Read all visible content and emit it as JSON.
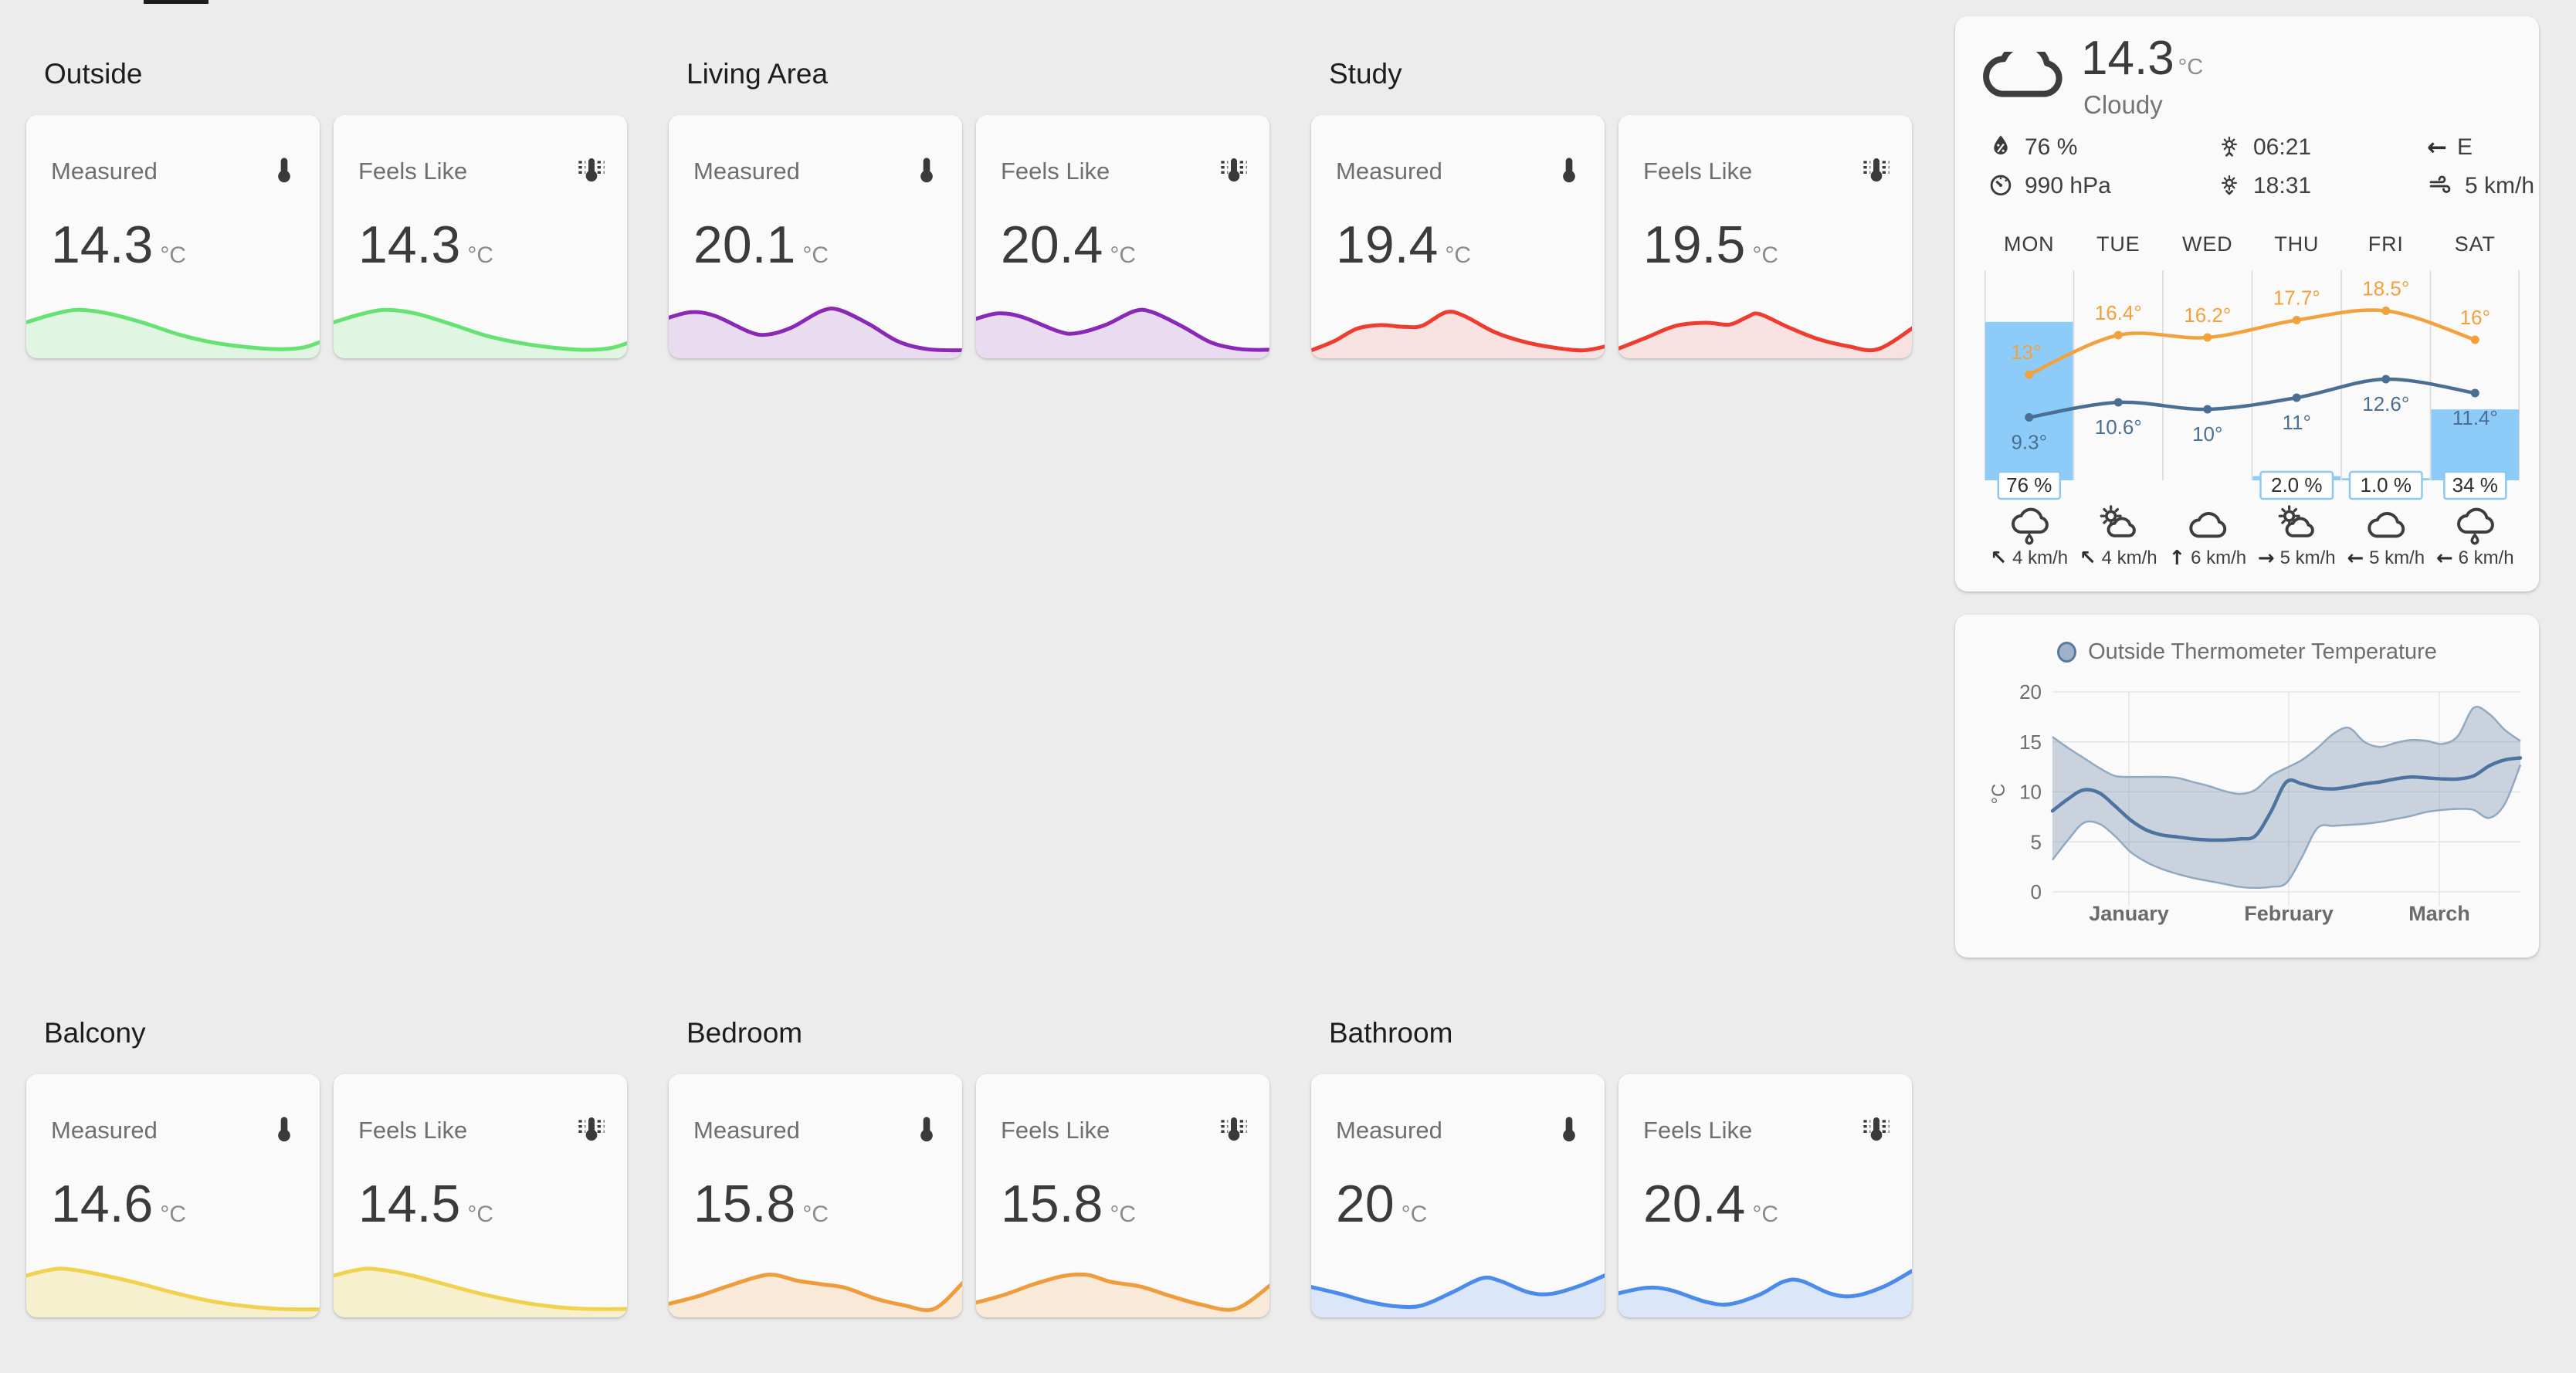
{
  "app": {
    "name": "home-dashboard"
  },
  "sections": [
    {
      "title": "Outside",
      "row": 0,
      "col": 0,
      "line_color": "#66e273",
      "fill_color": "rgba(102,226,115,0.16)",
      "cards": [
        {
          "label": "Measured",
          "icon": "thermometer",
          "value": "14.3",
          "unit": "°C",
          "spark": [
            [
              0,
              0.5
            ],
            [
              0.1,
              0.65
            ],
            [
              0.18,
              0.72
            ],
            [
              0.28,
              0.66
            ],
            [
              0.4,
              0.5
            ],
            [
              0.52,
              0.3
            ],
            [
              0.64,
              0.16
            ],
            [
              0.76,
              0.08
            ],
            [
              0.86,
              0.05
            ],
            [
              0.94,
              0.08
            ],
            [
              1,
              0.18
            ]
          ]
        },
        {
          "label": "Feels Like",
          "icon": "thermometer-lines",
          "value": "14.3",
          "unit": "°C",
          "spark": [
            [
              0,
              0.5
            ],
            [
              0.1,
              0.65
            ],
            [
              0.18,
              0.72
            ],
            [
              0.28,
              0.66
            ],
            [
              0.4,
              0.48
            ],
            [
              0.52,
              0.28
            ],
            [
              0.64,
              0.15
            ],
            [
              0.76,
              0.07
            ],
            [
              0.86,
              0.04
            ],
            [
              0.94,
              0.07
            ],
            [
              1,
              0.16
            ]
          ]
        }
      ]
    },
    {
      "title": "Living Area",
      "row": 0,
      "col": 1,
      "line_color": "#8a28b8",
      "fill_color": "rgba(138,40,184,0.14)",
      "cards": [
        {
          "label": "Measured",
          "icon": "thermometer",
          "value": "20.1",
          "unit": "°C",
          "spark": [
            [
              0,
              0.58
            ],
            [
              0.08,
              0.68
            ],
            [
              0.16,
              0.62
            ],
            [
              0.28,
              0.34
            ],
            [
              0.34,
              0.3
            ],
            [
              0.42,
              0.42
            ],
            [
              0.52,
              0.7
            ],
            [
              0.58,
              0.72
            ],
            [
              0.68,
              0.48
            ],
            [
              0.78,
              0.18
            ],
            [
              0.88,
              0.05
            ],
            [
              1,
              0.03
            ]
          ]
        },
        {
          "label": "Feels Like",
          "icon": "thermometer-lines",
          "value": "20.4",
          "unit": "°C",
          "spark": [
            [
              0,
              0.56
            ],
            [
              0.08,
              0.66
            ],
            [
              0.16,
              0.6
            ],
            [
              0.28,
              0.36
            ],
            [
              0.34,
              0.32
            ],
            [
              0.44,
              0.46
            ],
            [
              0.54,
              0.7
            ],
            [
              0.6,
              0.68
            ],
            [
              0.7,
              0.44
            ],
            [
              0.8,
              0.16
            ],
            [
              0.9,
              0.05
            ],
            [
              1,
              0.04
            ]
          ]
        }
      ]
    },
    {
      "title": "Study",
      "row": 0,
      "col": 2,
      "line_color": "#ee3c30",
      "fill_color": "rgba(238,60,48,0.12)",
      "cards": [
        {
          "label": "Measured",
          "icon": "thermometer",
          "value": "19.4",
          "unit": "°C",
          "spark": [
            [
              0,
              0.02
            ],
            [
              0.08,
              0.18
            ],
            [
              0.16,
              0.4
            ],
            [
              0.24,
              0.46
            ],
            [
              0.32,
              0.43
            ],
            [
              0.38,
              0.45
            ],
            [
              0.46,
              0.68
            ],
            [
              0.52,
              0.62
            ],
            [
              0.62,
              0.35
            ],
            [
              0.72,
              0.18
            ],
            [
              0.82,
              0.08
            ],
            [
              0.92,
              0.03
            ],
            [
              1,
              0.1
            ]
          ]
        },
        {
          "label": "Feels Like",
          "icon": "thermometer-lines",
          "value": "19.5",
          "unit": "°C",
          "spark": [
            [
              0,
              0.05
            ],
            [
              0.1,
              0.25
            ],
            [
              0.2,
              0.45
            ],
            [
              0.3,
              0.5
            ],
            [
              0.38,
              0.47
            ],
            [
              0.44,
              0.6
            ],
            [
              0.48,
              0.65
            ],
            [
              0.58,
              0.42
            ],
            [
              0.68,
              0.22
            ],
            [
              0.78,
              0.1
            ],
            [
              0.88,
              0.05
            ],
            [
              1,
              0.42
            ]
          ]
        }
      ]
    },
    {
      "title": "Balcony",
      "row": 1,
      "col": 0,
      "line_color": "#f0d24f",
      "fill_color": "rgba(240,210,79,0.25)",
      "cards": [
        {
          "label": "Measured",
          "icon": "thermometer",
          "value": "14.6",
          "unit": "°C",
          "spark": [
            [
              0,
              0.6
            ],
            [
              0.08,
              0.7
            ],
            [
              0.14,
              0.72
            ],
            [
              0.26,
              0.62
            ],
            [
              0.38,
              0.48
            ],
            [
              0.5,
              0.32
            ],
            [
              0.62,
              0.18
            ],
            [
              0.74,
              0.09
            ],
            [
              0.86,
              0.04
            ],
            [
              1,
              0.03
            ]
          ]
        },
        {
          "label": "Feels Like",
          "icon": "thermometer-lines",
          "value": "14.5",
          "unit": "°C",
          "spark": [
            [
              0,
              0.6
            ],
            [
              0.08,
              0.7
            ],
            [
              0.14,
              0.72
            ],
            [
              0.26,
              0.62
            ],
            [
              0.38,
              0.46
            ],
            [
              0.5,
              0.3
            ],
            [
              0.62,
              0.17
            ],
            [
              0.74,
              0.08
            ],
            [
              0.86,
              0.04
            ],
            [
              1,
              0.04
            ]
          ]
        }
      ]
    },
    {
      "title": "Bedroom",
      "row": 1,
      "col": 1,
      "line_color": "#ef9c3d",
      "fill_color": "rgba(239,156,61,0.18)",
      "cards": [
        {
          "label": "Measured",
          "icon": "thermometer",
          "value": "15.8",
          "unit": "°C",
          "spark": [
            [
              0,
              0.12
            ],
            [
              0.1,
              0.25
            ],
            [
              0.2,
              0.42
            ],
            [
              0.3,
              0.58
            ],
            [
              0.36,
              0.62
            ],
            [
              0.44,
              0.52
            ],
            [
              0.52,
              0.46
            ],
            [
              0.6,
              0.4
            ],
            [
              0.7,
              0.22
            ],
            [
              0.8,
              0.1
            ],
            [
              0.9,
              0.04
            ],
            [
              1,
              0.5
            ]
          ]
        },
        {
          "label": "Feels Like",
          "icon": "thermometer-lines",
          "value": "15.8",
          "unit": "°C",
          "spark": [
            [
              0,
              0.14
            ],
            [
              0.1,
              0.28
            ],
            [
              0.2,
              0.46
            ],
            [
              0.3,
              0.6
            ],
            [
              0.38,
              0.62
            ],
            [
              0.46,
              0.5
            ],
            [
              0.56,
              0.42
            ],
            [
              0.66,
              0.26
            ],
            [
              0.76,
              0.12
            ],
            [
              0.88,
              0.04
            ],
            [
              1,
              0.45
            ]
          ]
        }
      ]
    },
    {
      "title": "Bathroom",
      "row": 1,
      "col": 2,
      "line_color": "#4b8bec",
      "fill_color": "rgba(75,139,236,0.18)",
      "cards": [
        {
          "label": "Measured",
          "icon": "thermometer",
          "value": "20",
          "unit": "°C",
          "spark": [
            [
              0,
              0.42
            ],
            [
              0.1,
              0.3
            ],
            [
              0.2,
              0.16
            ],
            [
              0.3,
              0.08
            ],
            [
              0.38,
              0.1
            ],
            [
              0.48,
              0.32
            ],
            [
              0.58,
              0.56
            ],
            [
              0.64,
              0.52
            ],
            [
              0.74,
              0.32
            ],
            [
              0.82,
              0.3
            ],
            [
              0.92,
              0.45
            ],
            [
              1,
              0.62
            ]
          ]
        },
        {
          "label": "Feels Like",
          "icon": "thermometer-lines",
          "value": "20.4",
          "unit": "°C",
          "spark": [
            [
              0,
              0.3
            ],
            [
              0.1,
              0.4
            ],
            [
              0.18,
              0.36
            ],
            [
              0.3,
              0.16
            ],
            [
              0.38,
              0.12
            ],
            [
              0.48,
              0.28
            ],
            [
              0.56,
              0.5
            ],
            [
              0.62,
              0.52
            ],
            [
              0.72,
              0.3
            ],
            [
              0.8,
              0.26
            ],
            [
              0.9,
              0.42
            ],
            [
              1,
              0.7
            ]
          ]
        }
      ]
    }
  ],
  "weather": {
    "current": {
      "temp": "14.3",
      "unit": "°C",
      "condition": "Cloudy",
      "icon": "cloudy"
    },
    "details": [
      [
        {
          "icon": "humidity",
          "value": "76 %"
        },
        {
          "icon": "gauge",
          "value": "990 hPa"
        }
      ],
      [
        {
          "icon": "sunrise",
          "value": "06:21"
        },
        {
          "icon": "sunset",
          "value": "18:31"
        }
      ],
      [
        {
          "glyph": "←",
          "icon": "wind-direction",
          "value": "E"
        },
        {
          "icon": "windy",
          "value": "5 km/h"
        }
      ]
    ],
    "colors": {
      "precip_bar": "#8dccf8",
      "high_line": "#f2a13d",
      "low_line": "#4b6f93",
      "chip_border": "#8fc8ef"
    },
    "forecast": [
      {
        "day": "MON",
        "high": 13,
        "high_label": "13°",
        "low": 9.3,
        "low_label": "9.3°",
        "precip": 76,
        "precip_label": "76 %",
        "icon": "rainy",
        "wind_arrow": "↖",
        "wind": "4 km/h"
      },
      {
        "day": "TUE",
        "high": 16.4,
        "high_label": "16.4°",
        "low": 10.6,
        "low_label": "10.6°",
        "precip": 0,
        "precip_label": "",
        "icon": "partly-sunny",
        "wind_arrow": "↖",
        "wind": "4 km/h"
      },
      {
        "day": "WED",
        "high": 16.2,
        "high_label": "16.2°",
        "low": 10,
        "low_label": "10°",
        "precip": 0,
        "precip_label": "",
        "icon": "cloudy",
        "wind_arrow": "↑",
        "wind": "6 km/h"
      },
      {
        "day": "THU",
        "high": 17.7,
        "high_label": "17.7°",
        "low": 11,
        "low_label": "11°",
        "precip": 2,
        "precip_label": "2.0 %",
        "icon": "partly-sunny",
        "wind_arrow": "→",
        "wind": "5 km/h"
      },
      {
        "day": "FRI",
        "high": 18.5,
        "high_label": "18.5°",
        "low": 12.6,
        "low_label": "12.6°",
        "precip": 1,
        "precip_label": "1.0 %",
        "icon": "cloudy",
        "wind_arrow": "←",
        "wind": "5 km/h"
      },
      {
        "day": "SAT",
        "high": 16,
        "high_label": "16°",
        "low": 11.4,
        "low_label": "11.4°",
        "precip": 34,
        "precip_label": "34 %",
        "icon": "rainy",
        "wind_arrow": "←",
        "wind": "6 km/h"
      }
    ]
  },
  "chart_data": {
    "type": "area",
    "legend": "Outside Thermometer Temperature",
    "ylabel": "°C",
    "yticks": [
      0,
      5,
      10,
      15,
      20
    ],
    "ylim": [
      0,
      20
    ],
    "xlabels": [
      "January",
      "February",
      "March"
    ],
    "grid": true,
    "legend_position": "top",
    "colors": {
      "mean_line": "#4d74a1",
      "band_edge": "#91a9c0",
      "band_fill": "#5c7c9c"
    },
    "series": [
      {
        "name": "mean",
        "values": [
          8.1,
          9.3,
          10.2,
          9.9,
          8.6,
          7.2,
          6.2,
          5.7,
          5.5,
          5.3,
          5.2,
          5.2,
          5.3,
          5.6,
          8.0,
          11.0,
          10.8,
          10.4,
          10.3,
          10.5,
          10.8,
          11.0,
          11.3,
          11.5,
          11.4,
          11.3,
          11.3,
          11.6,
          12.6,
          13.2,
          13.4
        ]
      },
      {
        "name": "max",
        "values": [
          15.5,
          14.4,
          13.4,
          12.4,
          11.6,
          11.5,
          11.5,
          11.5,
          11.4,
          11.0,
          10.6,
          10.1,
          9.8,
          10.2,
          11.6,
          12.4,
          13.2,
          14.4,
          15.8,
          16.4,
          15.0,
          14.5,
          14.9,
          15.2,
          15.1,
          14.8,
          15.6,
          18.4,
          17.8,
          16.2,
          15.1
        ]
      },
      {
        "name": "min",
        "values": [
          3.2,
          5.2,
          6.9,
          6.8,
          5.6,
          4.0,
          3.0,
          2.3,
          1.8,
          1.4,
          1.1,
          0.8,
          0.5,
          0.4,
          0.5,
          0.9,
          3.5,
          6.4,
          6.6,
          6.7,
          6.8,
          7.0,
          7.3,
          7.6,
          8.0,
          8.2,
          8.3,
          8.2,
          7.4,
          8.8,
          12.7
        ]
      }
    ]
  }
}
